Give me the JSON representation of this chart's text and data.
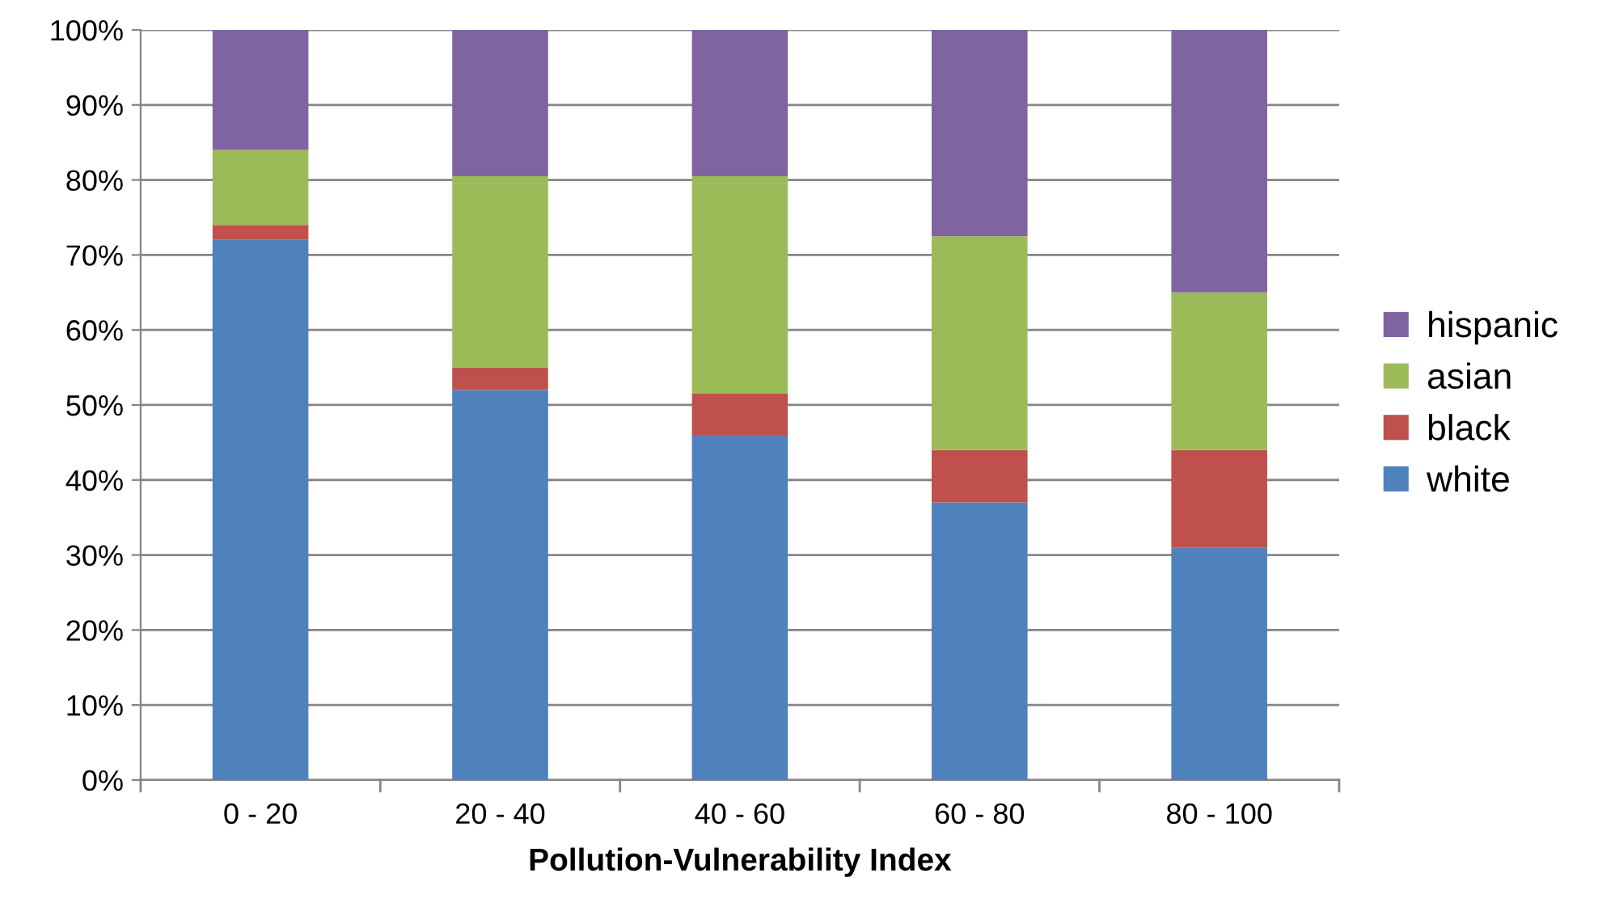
{
  "chart_data": {
    "type": "bar",
    "stacked": true,
    "xlabel": "Pollution-Vulnerability Index",
    "categories": [
      "0 - 20",
      "20 - 40",
      "40 - 60",
      "60 - 80",
      "80 - 100"
    ],
    "series": [
      {
        "name": "white",
        "color": "#4f81bd",
        "values": [
          72,
          52,
          46,
          37,
          31
        ]
      },
      {
        "name": "black",
        "color": "#c0504d",
        "values": [
          2,
          3,
          5.5,
          7,
          13
        ]
      },
      {
        "name": "asian",
        "color": "#9bbb59",
        "values": [
          10,
          25.5,
          29,
          28.5,
          21
        ]
      },
      {
        "name": "hispanic",
        "color": "#8064a2",
        "values": [
          16,
          19.5,
          19.5,
          27.5,
          35
        ]
      }
    ],
    "ylim": [
      0,
      100
    ],
    "yticks": [
      {
        "value": 0,
        "label": "0%"
      },
      {
        "value": 10,
        "label": "10%"
      },
      {
        "value": 20,
        "label": "20%"
      },
      {
        "value": 30,
        "label": "30%"
      },
      {
        "value": 40,
        "label": "40%"
      },
      {
        "value": 50,
        "label": "50%"
      },
      {
        "value": 60,
        "label": "60%"
      },
      {
        "value": 70,
        "label": "70%"
      },
      {
        "value": 80,
        "label": "80%"
      },
      {
        "value": 90,
        "label": "90%"
      },
      {
        "value": 100,
        "label": "100%"
      }
    ],
    "grid": "y",
    "legend": "right"
  }
}
